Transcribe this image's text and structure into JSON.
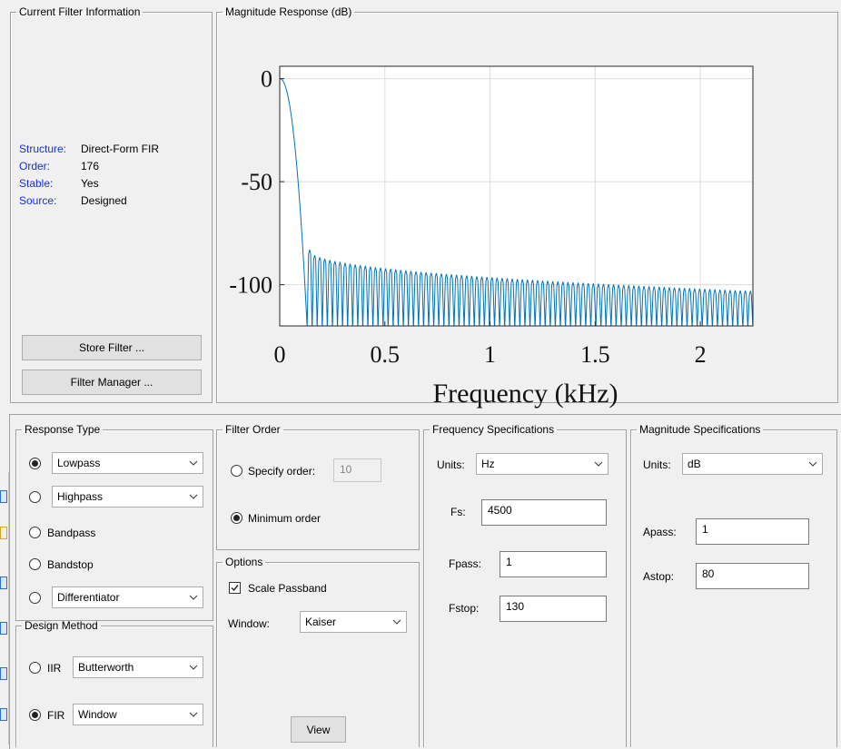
{
  "current_filter": {
    "title": "Current Filter Information",
    "rows": [
      {
        "key": "Structure:",
        "value": "Direct-Form FIR"
      },
      {
        "key": "Order:",
        "value": "176"
      },
      {
        "key": "Stable:",
        "value": "Yes"
      },
      {
        "key": "Source:",
        "value": "Designed"
      }
    ],
    "store_button": "Store Filter ...",
    "manager_button": "Filter Manager ..."
  },
  "plot": {
    "title": "Magnitude Response (dB)",
    "icon": "tool-icon-partial",
    "chart_data": {
      "type": "line",
      "xlabel": "Frequency (kHz)",
      "ylabel": "",
      "xlim": [
        0,
        2.25
      ],
      "ylim": [
        -120,
        6
      ],
      "x_ticks": [
        "0",
        "0.5",
        "1",
        "1.5",
        "2"
      ],
      "x_tick_values": [
        0,
        0.5,
        1,
        1.5,
        2
      ],
      "y_ticks": [
        "0",
        "-50",
        "-100"
      ],
      "y_tick_values": [
        0,
        -50,
        -100
      ],
      "grid": true,
      "series": [
        {
          "color": "#0072bd",
          "passband_edge_khz": 0.001,
          "stopband_edge_khz": 0.13,
          "sidelobe_start_db": -83,
          "sidelobe_end_db": -103,
          "notch_floor_db": -120,
          "sidelobe_count": 88
        }
      ]
    }
  },
  "response_type": {
    "title": "Response Type",
    "options": [
      {
        "label": "Lowpass",
        "selected": true
      },
      {
        "label": "Highpass",
        "selected": false
      },
      {
        "label": "Bandpass",
        "selected": false
      },
      {
        "label": "Bandstop",
        "selected": false
      },
      {
        "label": "Differentiator",
        "selected": false
      }
    ]
  },
  "design_method": {
    "title": "Design Method",
    "iir_label": "IIR",
    "iir_value": "Butterworth",
    "fir_label": "FIR",
    "fir_value": "Window",
    "selected": "FIR"
  },
  "filter_order": {
    "title": "Filter Order",
    "specify_label": "Specify order:",
    "specify_value": "10",
    "minimum_label": "Minimum order",
    "selected": "Minimum order"
  },
  "options": {
    "title": "Options",
    "scale_passband_label": "Scale Passband",
    "scale_passband_checked": true,
    "window_label": "Window:",
    "window_value": "Kaiser",
    "view_button": "View"
  },
  "frequency_spec": {
    "title": "Frequency Specifications",
    "units_label": "Units:",
    "units_value": "Hz",
    "fs_label": "Fs:",
    "fs_value": "4500",
    "fpass_label": "Fpass:",
    "fpass_value": "1",
    "fstop_label": "Fstop:",
    "fstop_value": "130"
  },
  "magnitude_spec": {
    "title": "Magnitude Specifications",
    "units_label": "Units:",
    "units_value": "dB",
    "apass_label": "Apass:",
    "apass_value": "1",
    "astop_label": "Astop:",
    "astop_value": "80"
  }
}
